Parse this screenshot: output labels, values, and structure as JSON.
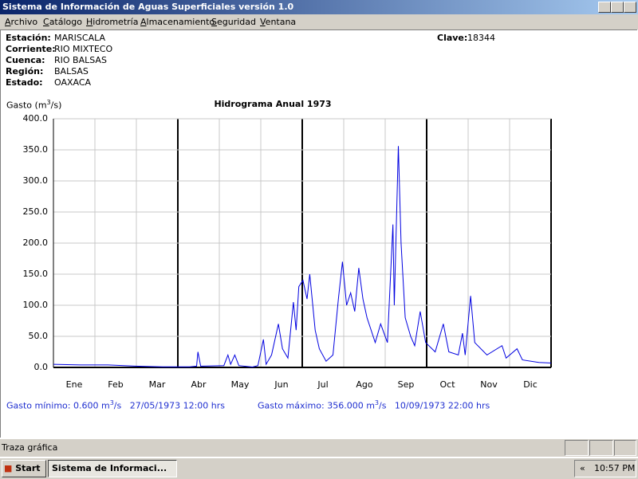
{
  "window": {
    "title": "Sistema de Información de Aguas Superficiales  versión 1.0"
  },
  "menu": [
    "Archivo",
    "Catálogo",
    "Hidrometría",
    "Almacenamiento",
    "Seguridad",
    "Ventana"
  ],
  "header": {
    "fields": [
      {
        "label": "Estación:",
        "value": "MARISCALA"
      },
      {
        "label": "Corriente:",
        "value": "RIO MIXTECO"
      },
      {
        "label": "Cuenca:",
        "value": "RIO BALSAS"
      },
      {
        "label": "Región:",
        "value": "BALSAS"
      },
      {
        "label": "Estado:",
        "value": "OAXACA"
      }
    ],
    "clave": {
      "label": "Clave:",
      "value": "18344"
    }
  },
  "chart_data": {
    "type": "line",
    "title": "Hidrograma Anual 1973",
    "y_label": {
      "text": "Gasto (m",
      "sup": "3",
      "tail": "/s)"
    },
    "categories": [
      "Ene",
      "Feb",
      "Mar",
      "Abr",
      "May",
      "Jun",
      "Jul",
      "Ago",
      "Sep",
      "Oct",
      "Nov",
      "Dic"
    ],
    "xlim": [
      0,
      365
    ],
    "ylim": [
      0,
      400
    ],
    "yticks": [
      {
        "value": 0,
        "label": "0.0"
      },
      {
        "value": 50,
        "label": "50.0"
      },
      {
        "value": 100,
        "label": "100.0"
      },
      {
        "value": 150,
        "label": "150.0"
      },
      {
        "value": 200,
        "label": "200.0"
      },
      {
        "value": 250,
        "label": "250.0"
      },
      {
        "value": 300,
        "label": "300.0"
      },
      {
        "value": 350,
        "label": "350.0"
      },
      {
        "value": 400,
        "label": "400.0"
      }
    ],
    "grid": true,
    "color": "#0000e0",
    "x": [
      0,
      20,
      40,
      60,
      80,
      100,
      105,
      106,
      108,
      125,
      128,
      130,
      133,
      136,
      146,
      150,
      154,
      156,
      160,
      165,
      168,
      172,
      176,
      178,
      180,
      183,
      186,
      188,
      192,
      195,
      200,
      205,
      209,
      212,
      215,
      218,
      221,
      224,
      227,
      230,
      236,
      240,
      245,
      249,
      250,
      253,
      255,
      258,
      262,
      265,
      269,
      273,
      280,
      286,
      290,
      297,
      300,
      302,
      306,
      309,
      318,
      329,
      332,
      340,
      344,
      356,
      365
    ],
    "values": [
      5,
      4,
      4,
      2,
      1,
      1,
      2,
      25,
      2,
      3,
      20,
      5,
      20,
      3,
      0.6,
      3,
      45,
      5,
      20,
      70,
      30,
      15,
      105,
      60,
      130,
      140,
      110,
      150,
      60,
      30,
      10,
      20,
      110,
      170,
      100,
      120,
      90,
      160,
      110,
      80,
      40,
      70,
      40,
      230,
      100,
      356,
      200,
      80,
      50,
      35,
      90,
      40,
      25,
      70,
      25,
      20,
      55,
      20,
      115,
      40,
      20,
      35,
      15,
      30,
      12,
      8,
      7
    ]
  },
  "footer": {
    "min": {
      "text": "Gasto mínimo: 0.600 m",
      "sup": "3",
      "tail": "/s   27/05/1973 12:00 hrs"
    },
    "max": {
      "text": "Gasto máximo: 356.000 m",
      "sup": "3",
      "tail": "/s   10/09/1973 22:00 hrs"
    }
  },
  "status": "Traza gráfica",
  "taskbar": {
    "start": "Start",
    "task": "Sistema de Informaci...",
    "clock": "10:57 PM"
  }
}
